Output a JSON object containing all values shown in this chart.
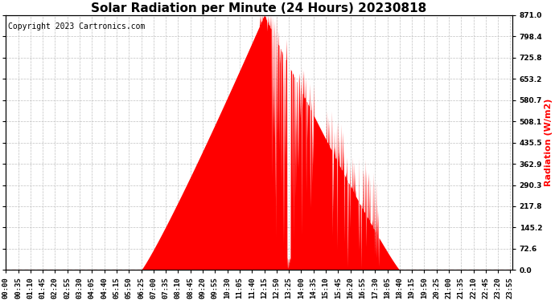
{
  "title": "Solar Radiation per Minute (24 Hours) 20230818",
  "copyright_text": "Copyright 2023 Cartronics.com",
  "ylabel": "Radiation (W/m2)",
  "ylabel_color": "#ff0000",
  "background_color": "#ffffff",
  "fill_color": "#ff0000",
  "line_color": "#ff0000",
  "grid_color": "#c0c0c0",
  "yticks": [
    0.0,
    72.6,
    145.2,
    217.8,
    290.3,
    362.9,
    435.5,
    508.1,
    580.7,
    653.2,
    725.8,
    798.4,
    871.0
  ],
  "ymax": 871.0,
  "ymin": 0.0,
  "xtick_labels": [
    "00:00",
    "00:35",
    "01:10",
    "01:45",
    "02:20",
    "02:55",
    "03:30",
    "04:05",
    "04:40",
    "05:15",
    "05:50",
    "06:25",
    "07:00",
    "07:35",
    "08:10",
    "08:45",
    "09:20",
    "09:55",
    "10:30",
    "11:05",
    "11:40",
    "12:15",
    "12:50",
    "13:25",
    "14:00",
    "14:35",
    "15:10",
    "15:45",
    "16:20",
    "16:55",
    "17:30",
    "18:05",
    "18:40",
    "19:15",
    "19:50",
    "20:25",
    "21:00",
    "21:35",
    "22:10",
    "22:45",
    "23:20",
    "23:55"
  ],
  "title_fontsize": 11,
  "copyright_fontsize": 7,
  "tick_fontsize": 6.5,
  "ylabel_fontsize": 8
}
